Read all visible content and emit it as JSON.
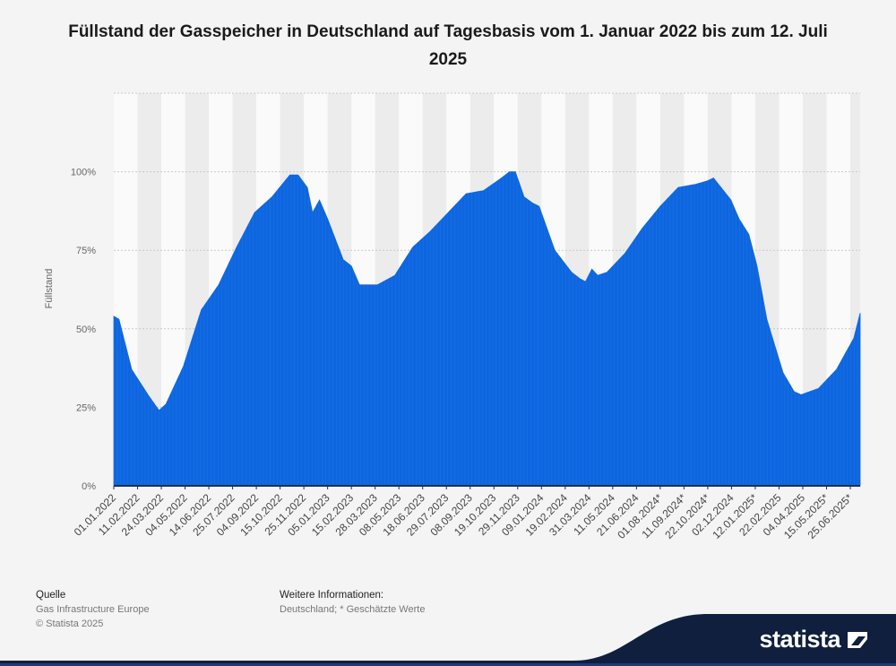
{
  "title": "Füllstand der Gasspeicher in Deutschland auf Tagesbasis vom 1. Januar 2022 bis zum 12. Juli 2025",
  "footer": {
    "source_heading": "Quelle",
    "source_name": "Gas Infrastructure Europe",
    "copyright": "© Statista 2025",
    "info_heading": "Weitere Informationen:",
    "info_text": "Deutschland; * Geschätzte Werte"
  },
  "brand": {
    "name": "statista",
    "color": "#0f1f3d"
  },
  "colors": {
    "series": "#0d66e0",
    "baseline": "#1f2f4f",
    "grid": "#c8c8c8",
    "band": "#ececec"
  },
  "chart_data": {
    "type": "area",
    "title": "Füllstand der Gasspeicher in Deutschland auf Tagesbasis vom 1. Januar 2022 bis zum 12. Juli 2025",
    "xlabel": "",
    "ylabel": "Füllstand",
    "ylim": [
      0,
      125
    ],
    "yticks": [
      0,
      25,
      50,
      75,
      100
    ],
    "ytick_labels": [
      "0%",
      "25%",
      "50%",
      "75%",
      "100%"
    ],
    "grid": true,
    "x_range": [
      "01.01.2022",
      "12.07.2025"
    ],
    "x_tick_labels": [
      "01.01.2022",
      "11.02.2022",
      "24.03.2022",
      "04.05.2022",
      "14.06.2022",
      "25.07.2022",
      "04.09.2022",
      "15.10.2022",
      "25.11.2022",
      "05.01.2023",
      "15.02.2023",
      "28.03.2023",
      "08.05.2023",
      "18.06.2023",
      "29.07.2023",
      "08.09.2023",
      "19.10.2023",
      "29.11.2023",
      "09.01.2024",
      "19.02.2024",
      "31.03.2024",
      "11.05.2024",
      "21.06.2024",
      "01.08.2024*",
      "11.09.2024*",
      "22.10.2024*",
      "02.12.2024",
      "12.01.2025*",
      "22.02.2025",
      "04.04.2025",
      "15.05.2025*",
      "25.06.2025*"
    ],
    "series": [
      {
        "name": "Füllstand",
        "x": [
          "01.01.2022",
          "10.01.2022",
          "01.02.2022",
          "01.03.2022",
          "20.03.2022",
          "01.04.2022",
          "01.05.2022",
          "01.06.2022",
          "01.07.2022",
          "01.08.2022",
          "01.09.2022",
          "01.10.2022",
          "01.11.2022",
          "15.11.2022",
          "01.12.2022",
          "10.12.2022",
          "22.12.2022",
          "05.01.2023",
          "01.02.2023",
          "15.02.2023",
          "01.03.2023",
          "15.03.2023",
          "01.04.2023",
          "01.05.2023",
          "01.06.2023",
          "01.07.2023",
          "01.08.2023",
          "01.09.2023",
          "01.10.2023",
          "01.11.2023",
          "15.11.2023",
          "25.11.2023",
          "10.12.2023",
          "25.12.2023",
          "05.01.2024",
          "01.02.2024",
          "01.03.2024",
          "15.03.2024",
          "25.03.2024",
          "05.04.2024",
          "15.04.2024",
          "01.05.2024",
          "01.06.2024",
          "01.07.2024",
          "01.08.2024",
          "01.09.2024",
          "01.10.2024",
          "20.10.2024",
          "01.11.2024",
          "01.12.2024",
          "15.12.2024",
          "01.01.2025",
          "15.01.2025",
          "01.02.2025",
          "01.03.2025",
          "20.03.2025",
          "01.04.2025",
          "01.05.2025",
          "01.06.2025",
          "01.07.2025",
          "12.07.2025"
        ],
        "values": [
          54,
          53,
          37,
          29,
          24,
          26,
          38,
          56,
          64,
          76,
          87,
          92,
          99,
          99,
          95,
          87,
          91,
          85,
          72,
          70,
          64,
          64,
          64,
          67,
          76,
          81,
          87,
          93,
          94,
          98,
          100,
          100,
          92,
          90,
          89,
          75,
          68,
          66,
          65,
          69,
          67,
          68,
          74,
          82,
          89,
          95,
          96,
          97,
          98,
          91,
          85,
          80,
          70,
          53,
          36,
          30,
          29,
          31,
          37,
          47,
          55
        ]
      }
    ]
  }
}
